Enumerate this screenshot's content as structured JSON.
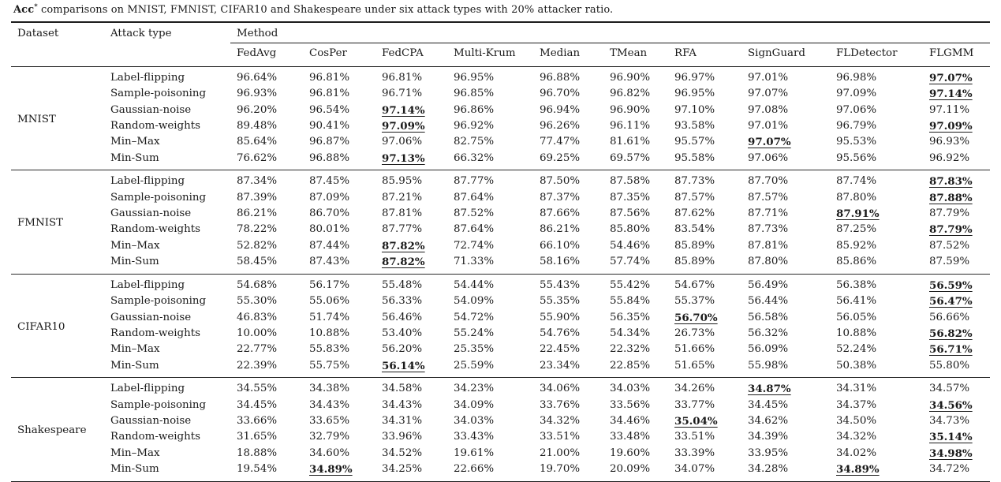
{
  "caption": {
    "term": "Acc",
    "superscript": "*",
    "text": " comparisons on MNIST, FMNIST, CIFAR10 and Shakespeare under six attack types with 20% attacker ratio."
  },
  "colors": {
    "text": "#1a1a1a",
    "rule": "#1c1c1c",
    "background": "#ffffff"
  },
  "table": {
    "headers": {
      "dataset": "Dataset",
      "attack_type": "Attack type",
      "method": "Method"
    },
    "methods": [
      "FedAvg",
      "CosPer",
      "FedCPA",
      "Multi-Krum",
      "Median",
      "TMean",
      "RFA",
      "SignGuard",
      "FLDetector",
      "FLGMM"
    ],
    "groups": [
      {
        "dataset": "MNIST",
        "rows": [
          {
            "attack": "Label-flipping",
            "values": [
              "96.64%",
              "96.81%",
              "96.81%",
              "96.95%",
              "96.88%",
              "96.90%",
              "96.97%",
              "97.01%",
              "96.98%",
              "97.07%"
            ],
            "best": [
              9
            ]
          },
          {
            "attack": "Sample-poisoning",
            "values": [
              "96.93%",
              "96.81%",
              "96.71%",
              "96.85%",
              "96.70%",
              "96.82%",
              "96.95%",
              "97.07%",
              "97.09%",
              "97.14%"
            ],
            "best": [
              9
            ]
          },
          {
            "attack": "Gaussian-noise",
            "values": [
              "96.20%",
              "96.54%",
              "97.14%",
              "96.86%",
              "96.94%",
              "96.90%",
              "97.10%",
              "97.08%",
              "97.06%",
              "97.11%"
            ],
            "best": [
              2
            ]
          },
          {
            "attack": "Random-weights",
            "values": [
              "89.48%",
              "90.41%",
              "97.09%",
              "96.92%",
              "96.26%",
              "96.11%",
              "93.58%",
              "97.01%",
              "96.79%",
              "97.09%"
            ],
            "best": [
              2,
              9
            ]
          },
          {
            "attack": "Min–Max",
            "values": [
              "85.64%",
              "96.87%",
              "97.06%",
              "82.75%",
              "77.47%",
              "81.61%",
              "95.57%",
              "97.07%",
              "95.53%",
              "96.93%"
            ],
            "best": [
              7
            ]
          },
          {
            "attack": "Min-Sum",
            "values": [
              "76.62%",
              "96.88%",
              "97.13%",
              "66.32%",
              "69.25%",
              "69.57%",
              "95.58%",
              "97.06%",
              "95.56%",
              "96.92%"
            ],
            "best": [
              2
            ]
          }
        ]
      },
      {
        "dataset": "FMNIST",
        "rows": [
          {
            "attack": "Label-flipping",
            "values": [
              "87.34%",
              "87.45%",
              "85.95%",
              "87.77%",
              "87.50%",
              "87.58%",
              "87.73%",
              "87.70%",
              "87.74%",
              "87.83%"
            ],
            "best": [
              9
            ]
          },
          {
            "attack": "Sample-poisoning",
            "values": [
              "87.39%",
              "87.09%",
              "87.21%",
              "87.64%",
              "87.37%",
              "87.35%",
              "87.57%",
              "87.57%",
              "87.80%",
              "87.88%"
            ],
            "best": [
              9
            ]
          },
          {
            "attack": "Gaussian-noise",
            "values": [
              "86.21%",
              "86.70%",
              "87.81%",
              "87.52%",
              "87.66%",
              "87.56%",
              "87.62%",
              "87.71%",
              "87.91%",
              "87.79%"
            ],
            "best": [
              8
            ]
          },
          {
            "attack": "Random-weights",
            "values": [
              "78.22%",
              "80.01%",
              "87.77%",
              "87.64%",
              "86.21%",
              "85.80%",
              "83.54%",
              "87.73%",
              "87.25%",
              "87.79%"
            ],
            "best": [
              9
            ]
          },
          {
            "attack": "Min–Max",
            "values": [
              "52.82%",
              "87.44%",
              "87.82%",
              "72.74%",
              "66.10%",
              "54.46%",
              "85.89%",
              "87.81%",
              "85.92%",
              "87.52%"
            ],
            "best": [
              2
            ]
          },
          {
            "attack": "Min-Sum",
            "values": [
              "58.45%",
              "87.43%",
              "87.82%",
              "71.33%",
              "58.16%",
              "57.74%",
              "85.89%",
              "87.80%",
              "85.86%",
              "87.59%"
            ],
            "best": [
              2
            ]
          }
        ]
      },
      {
        "dataset": "CIFAR10",
        "rows": [
          {
            "attack": "Label-flipping",
            "values": [
              "54.68%",
              "56.17%",
              "55.48%",
              "54.44%",
              "55.43%",
              "55.42%",
              "54.67%",
              "56.49%",
              "56.38%",
              "56.59%"
            ],
            "best": [
              9
            ]
          },
          {
            "attack": "Sample-poisoning",
            "values": [
              "55.30%",
              "55.06%",
              "56.33%",
              "54.09%",
              "55.35%",
              "55.84%",
              "55.37%",
              "56.44%",
              "56.41%",
              "56.47%"
            ],
            "best": [
              9
            ]
          },
          {
            "attack": "Gaussian-noise",
            "values": [
              "46.83%",
              "51.74%",
              "56.46%",
              "54.72%",
              "55.90%",
              "56.35%",
              "56.70%",
              "56.58%",
              "56.05%",
              "56.66%"
            ],
            "best": [
              6
            ]
          },
          {
            "attack": "Random-weights",
            "values": [
              "10.00%",
              "10.88%",
              "53.40%",
              "55.24%",
              "54.76%",
              "54.34%",
              "26.73%",
              "56.32%",
              "10.88%",
              "56.82%"
            ],
            "best": [
              9
            ]
          },
          {
            "attack": "Min–Max",
            "values": [
              "22.77%",
              "55.83%",
              "56.20%",
              "25.35%",
              "22.45%",
              "22.32%",
              "51.66%",
              "56.09%",
              "52.24%",
              "56.71%"
            ],
            "best": [
              9
            ]
          },
          {
            "attack": "Min-Sum",
            "values": [
              "22.39%",
              "55.75%",
              "56.14%",
              "25.59%",
              "23.34%",
              "22.85%",
              "51.65%",
              "55.98%",
              "50.38%",
              "55.80%"
            ],
            "best": [
              2
            ]
          }
        ]
      },
      {
        "dataset": "Shakespeare",
        "rows": [
          {
            "attack": "Label-flipping",
            "values": [
              "34.55%",
              "34.38%",
              "34.58%",
              "34.23%",
              "34.06%",
              "34.03%",
              "34.26%",
              "34.87%",
              "34.31%",
              "34.57%"
            ],
            "best": [
              7
            ]
          },
          {
            "attack": "Sample-poisoning",
            "values": [
              "34.45%",
              "34.43%",
              "34.43%",
              "34.09%",
              "33.76%",
              "33.56%",
              "33.77%",
              "34.45%",
              "34.37%",
              "34.56%"
            ],
            "best": [
              9
            ]
          },
          {
            "attack": "Gaussian-noise",
            "values": [
              "33.66%",
              "33.65%",
              "34.31%",
              "34.03%",
              "34.32%",
              "34.46%",
              "35.04%",
              "34.62%",
              "34.50%",
              "34.73%"
            ],
            "best": [
              6
            ]
          },
          {
            "attack": "Random-weights",
            "values": [
              "31.65%",
              "32.79%",
              "33.96%",
              "33.43%",
              "33.51%",
              "33.48%",
              "33.51%",
              "34.39%",
              "34.32%",
              "35.14%"
            ],
            "best": [
              9
            ]
          },
          {
            "attack": "Min–Max",
            "values": [
              "18.88%",
              "34.60%",
              "34.52%",
              "19.61%",
              "21.00%",
              "19.60%",
              "33.39%",
              "33.95%",
              "34.02%",
              "34.98%"
            ],
            "best": [
              9
            ]
          },
          {
            "attack": "Min-Sum",
            "values": [
              "19.54%",
              "34.89%",
              "34.25%",
              "22.66%",
              "19.70%",
              "20.09%",
              "34.07%",
              "34.28%",
              "34.89%",
              "34.72%"
            ],
            "best": [
              1,
              8
            ]
          }
        ]
      }
    ]
  }
}
